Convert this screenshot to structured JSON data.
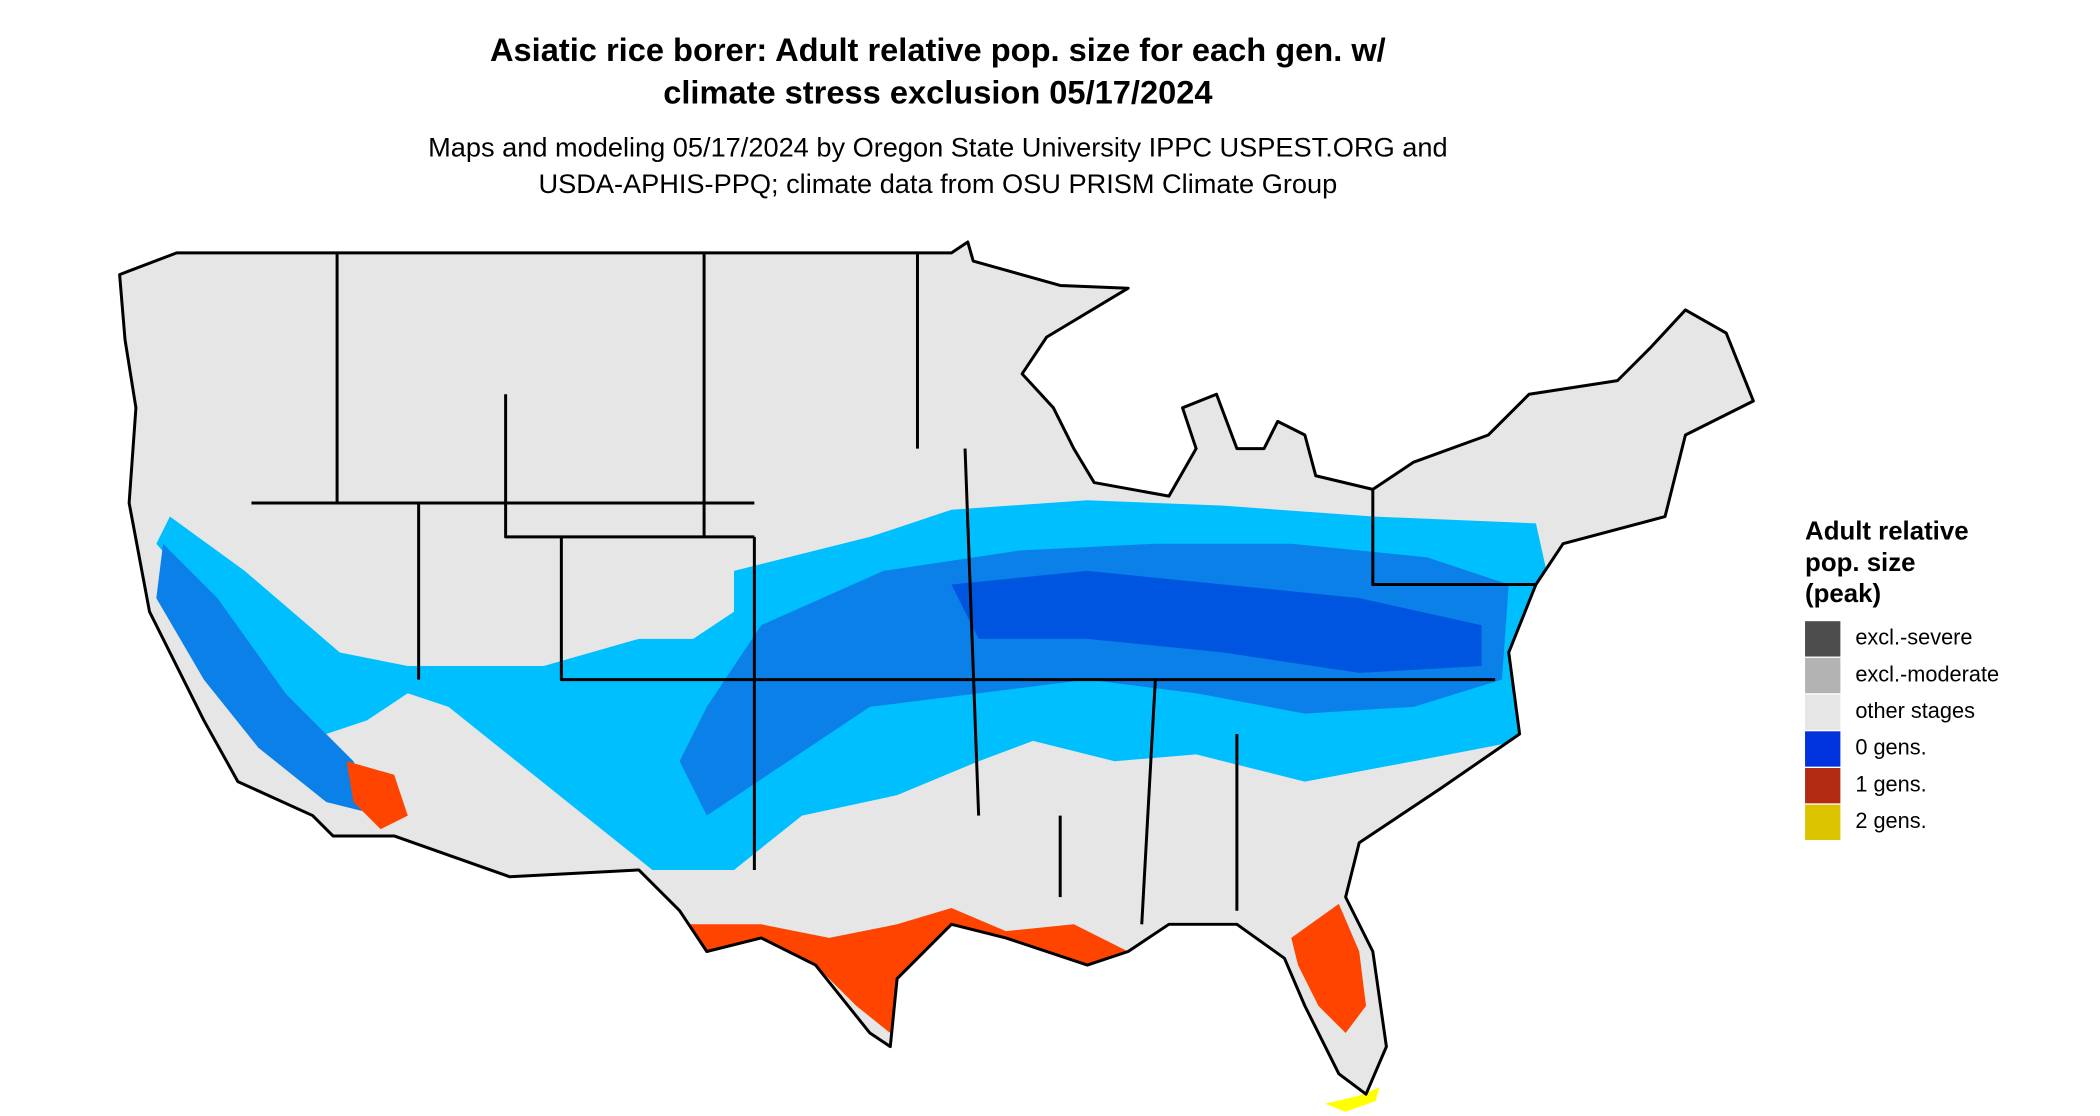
{
  "title": [
    "Asiatic rice borer: Adult relative pop. size for each gen. w/",
    "climate stress exclusion 05/17/2024"
  ],
  "subtitle": [
    "Maps and modeling 05/17/2024 by Oregon State University IPPC USPEST.ORG and",
    "USDA-APHIS-PPQ; climate data from OSU PRISM Climate Group"
  ],
  "legend": {
    "title": [
      "Adult relative",
      "pop. size",
      "(peak)"
    ],
    "items": [
      {
        "label": "excl.-severe",
        "color": "#4d4d4d"
      },
      {
        "label": "excl.-moderate",
        "color": "#b3b3b3"
      },
      {
        "label": "other stages",
        "color": "#e6e6e6"
      },
      {
        "label": "0 gens.",
        "color": "#0033dd"
      },
      {
        "label": "1 gens.",
        "color": "#b22a12"
      },
      {
        "label": "2 gens.",
        "color": "#dcc300"
      }
    ]
  }
}
